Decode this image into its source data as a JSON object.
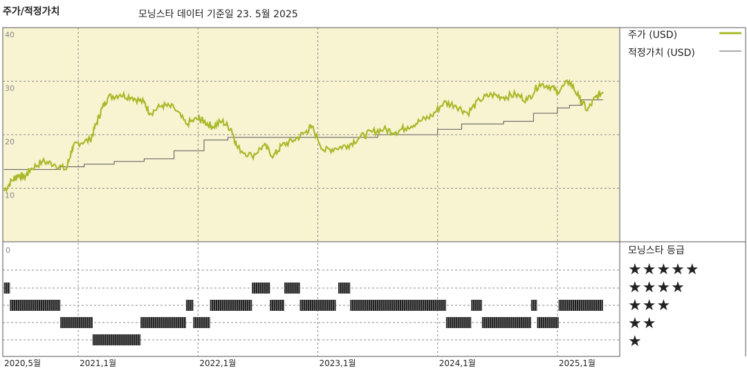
{
  "header": {
    "title": "주가/적정가치",
    "subtitle": "모닝스타 데이터 기준일 23. 5월 2025"
  },
  "colors": {
    "price": "#a8b92a",
    "fair_value": "#555555",
    "plot_bg": "#f8f4d2",
    "grid": "#888888"
  },
  "legend": {
    "price_label": "주가 (USD)",
    "fair_value_label": "적정가치 (USD)"
  },
  "rating_panel": {
    "title": "모닝스타 등급",
    "star_rows": [
      "★★★★★",
      "★★★★",
      "★★★",
      "★★",
      "★"
    ]
  },
  "chart_data": [
    {
      "type": "line",
      "title": "주가/적정가치",
      "x_tick_labels": [
        "2020,5월",
        "2021,1월",
        "2022,1월",
        "2023,1월",
        "2024,1월",
        "2025,1월"
      ],
      "y_tick_labels": [
        "40",
        "30",
        "20",
        "10"
      ],
      "ylim": [
        0,
        40
      ],
      "grid": true,
      "legend": "right",
      "series": [
        {
          "name": "주가 (USD)",
          "points": [
            [
              2020.38,
              9.5
            ],
            [
              2020.45,
              11.5
            ],
            [
              2020.5,
              12.5
            ],
            [
              2020.55,
              12.0
            ],
            [
              2020.6,
              13.5
            ],
            [
              2020.7,
              15.0
            ],
            [
              2020.8,
              14.5
            ],
            [
              2020.9,
              13.5
            ],
            [
              2020.95,
              17.5
            ],
            [
              2021.0,
              18.5
            ],
            [
              2021.1,
              19.0
            ],
            [
              2021.15,
              22.0
            ],
            [
              2021.2,
              25.0
            ],
            [
              2021.25,
              27.0
            ],
            [
              2021.35,
              27.5
            ],
            [
              2021.45,
              27.0
            ],
            [
              2021.55,
              26.0
            ],
            [
              2021.6,
              24.0
            ],
            [
              2021.7,
              25.5
            ],
            [
              2021.8,
              25.0
            ],
            [
              2021.9,
              22.0
            ],
            [
              2022.0,
              23.0
            ],
            [
              2022.05,
              22.5
            ],
            [
              2022.12,
              21.5
            ],
            [
              2022.2,
              22.5
            ],
            [
              2022.28,
              21.0
            ],
            [
              2022.33,
              17.5
            ],
            [
              2022.45,
              16.0
            ],
            [
              2022.55,
              18.0
            ],
            [
              2022.63,
              16.0
            ],
            [
              2022.7,
              18.0
            ],
            [
              2022.8,
              19.0
            ],
            [
              2022.9,
              20.5
            ],
            [
              2022.95,
              21.5
            ],
            [
              2023.05,
              17.0
            ],
            [
              2023.15,
              17.5
            ],
            [
              2023.25,
              18.0
            ],
            [
              2023.35,
              19.5
            ],
            [
              2023.45,
              20.5
            ],
            [
              2023.55,
              21.0
            ],
            [
              2023.65,
              20.5
            ],
            [
              2023.75,
              21.5
            ],
            [
              2023.85,
              22.5
            ],
            [
              2023.95,
              23.5
            ],
            [
              2024.05,
              26.0
            ],
            [
              2024.15,
              25.5
            ],
            [
              2024.25,
              24.0
            ],
            [
              2024.35,
              26.5
            ],
            [
              2024.45,
              27.5
            ],
            [
              2024.55,
              27.0
            ],
            [
              2024.65,
              27.5
            ],
            [
              2024.75,
              26.5
            ],
            [
              2024.85,
              29.5
            ],
            [
              2024.95,
              29.0
            ],
            [
              2025.0,
              28.0
            ],
            [
              2025.1,
              30.0
            ],
            [
              2025.18,
              27.0
            ],
            [
              2025.25,
              24.5
            ],
            [
              2025.32,
              27.0
            ],
            [
              2025.38,
              28.0
            ]
          ]
        },
        {
          "name": "적정가치 (USD)",
          "steps": [
            [
              2020.38,
              13.5
            ],
            [
              2020.85,
              14.0
            ],
            [
              2021.05,
              14.5
            ],
            [
              2021.3,
              15.0
            ],
            [
              2021.55,
              15.5
            ],
            [
              2021.8,
              17.0
            ],
            [
              2022.05,
              19.0
            ],
            [
              2022.25,
              19.5
            ],
            [
              2022.45,
              19.5
            ],
            [
              2023.5,
              20.0
            ],
            [
              2024.0,
              21.0
            ],
            [
              2024.2,
              22.0
            ],
            [
              2024.55,
              22.5
            ],
            [
              2024.8,
              24.0
            ],
            [
              2025.0,
              25.0
            ],
            [
              2025.1,
              25.5
            ],
            [
              2025.2,
              26.5
            ],
            [
              2025.38,
              26.5
            ]
          ]
        }
      ]
    },
    {
      "type": "bar",
      "title": "모닝스타 등급",
      "segments": [
        {
          "start": 2020.38,
          "end": 2020.43,
          "stars": 4
        },
        {
          "start": 2020.43,
          "end": 2020.85,
          "stars": 3
        },
        {
          "start": 2020.85,
          "end": 2021.12,
          "stars": 2
        },
        {
          "start": 2021.12,
          "end": 2021.52,
          "stars": 1
        },
        {
          "start": 2021.52,
          "end": 2021.9,
          "stars": 2
        },
        {
          "start": 2021.9,
          "end": 2021.96,
          "stars": 3
        },
        {
          "start": 2021.96,
          "end": 2022.1,
          "stars": 2
        },
        {
          "start": 2022.1,
          "end": 2022.45,
          "stars": 3
        },
        {
          "start": 2022.45,
          "end": 2022.6,
          "stars": 4
        },
        {
          "start": 2022.6,
          "end": 2022.72,
          "stars": 3
        },
        {
          "start": 2022.72,
          "end": 2022.85,
          "stars": 4
        },
        {
          "start": 2022.85,
          "end": 2023.15,
          "stars": 3
        },
        {
          "start": 2023.17,
          "end": 2023.27,
          "stars": 4
        },
        {
          "start": 2023.27,
          "end": 2024.07,
          "stars": 3
        },
        {
          "start": 2024.07,
          "end": 2024.28,
          "stars": 2
        },
        {
          "start": 2024.28,
          "end": 2024.37,
          "stars": 3
        },
        {
          "start": 2024.37,
          "end": 2024.78,
          "stars": 2
        },
        {
          "start": 2024.78,
          "end": 2024.83,
          "stars": 3
        },
        {
          "start": 2024.83,
          "end": 2025.01,
          "stars": 2
        },
        {
          "start": 2025.01,
          "end": 2025.38,
          "stars": 3
        }
      ]
    }
  ]
}
